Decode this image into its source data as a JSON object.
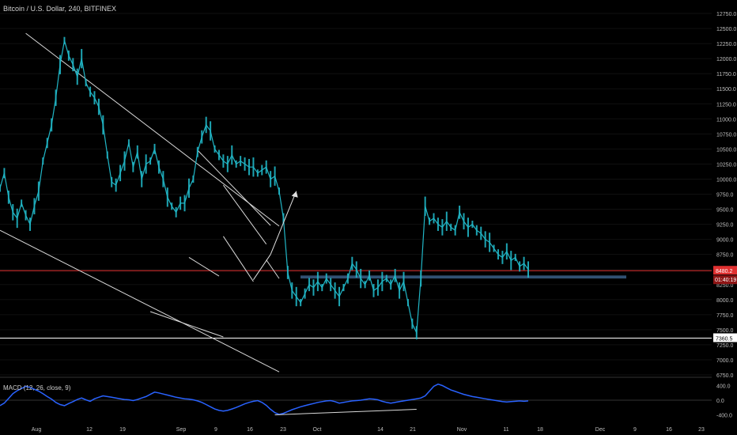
{
  "title": "Bitcoin / U.S. Dollar, 240, BITFINEX",
  "chart_data": [
    {
      "type": "line",
      "title": "Bitcoin / U.S. Dollar, 240, BITFINEX",
      "xlabel": "",
      "ylabel": "",
      "x_ticks": [
        "Aug",
        "12",
        "19",
        "Sep",
        "9",
        "16",
        "23",
        "Oct",
        "14",
        "21",
        "Nov",
        "11",
        "18",
        "Dec",
        "9",
        "16",
        "23"
      ],
      "y_ticks": [
        12750,
        12500,
        12250,
        12000,
        11750,
        11500,
        11250,
        11000,
        10750,
        10500,
        10250,
        10000,
        9750,
        9500,
        9250,
        9000,
        8750,
        8500,
        8250,
        8000,
        7750,
        7500,
        7250,
        7000,
        6750
      ],
      "y_tick_labels": [
        "12750.0",
        "12500.0",
        "12250.0",
        "12000.0",
        "11750.0",
        "11500.0",
        "11250.0",
        "11000.0",
        "10750.0",
        "10500.0",
        "10250.0",
        "10000.0",
        "9750.0",
        "9500.0",
        "9250.0",
        "9000.0",
        "8750.0",
        "8500.0",
        "8250.0",
        "8000.0",
        "7750.0",
        "7500.0",
        "7250.0",
        "7000.0",
        "6750.0"
      ],
      "ylim": [
        6650,
        12850
      ],
      "series": [
        {
          "values": [
            9850,
            10100,
            9700,
            9450,
            9350,
            9600,
            9400,
            9250,
            9550,
            9800,
            10300,
            10600,
            10900,
            11350,
            11900,
            12300,
            12050,
            11900,
            11700,
            12000,
            11600,
            11450,
            11350,
            11200,
            10900,
            10400,
            9950,
            9900,
            10100,
            10300,
            10600,
            10200,
            10450,
            10000,
            10250,
            10300,
            10500,
            10200,
            10000,
            9700,
            9550,
            9450,
            9600,
            9600,
            9850,
            10000,
            10450,
            10700,
            10900,
            10800,
            10500,
            10400,
            10300,
            10250,
            10400,
            10250,
            10300,
            10250,
            10200,
            10200,
            10100,
            10150,
            10200,
            10000,
            10050,
            9800,
            9350,
            8450,
            8150,
            8050,
            7950,
            8100,
            8250,
            8200,
            8300,
            8200,
            8350,
            8250,
            8150,
            8050,
            8200,
            8350,
            8600,
            8500,
            8350,
            8250,
            8400,
            8150,
            8200,
            8300,
            8350,
            8250,
            8400,
            8150,
            8300,
            7950,
            7600,
            7450,
            8350,
            9550,
            9300,
            9350,
            9250,
            9200,
            9300,
            9200,
            9150,
            9450,
            9300,
            9200,
            9250,
            9150,
            9100,
            9000,
            8950,
            8850,
            8750,
            8700,
            8800,
            8650,
            8700,
            8550,
            8600,
            8500
          ]
        }
      ],
      "hlines": [
        {
          "value": 8480.2,
          "label": "8480.2",
          "color": "#e03030"
        },
        {
          "value": 7360.5,
          "label": "7360.5",
          "color": "#ffffff"
        }
      ],
      "countdown": "01:40:19",
      "support_zone": [
        8350,
        8400
      ],
      "trendlines": [
        {
          "from": [
            6,
            12420
          ],
          "to": [
            65,
            9220
          ]
        },
        {
          "from": [
            0,
            9150
          ],
          "to": [
            65,
            6800
          ]
        },
        {
          "from": [
            46,
            10480
          ],
          "to": [
            63,
            9230
          ]
        },
        {
          "from": [
            52,
            9900
          ],
          "to": [
            62,
            8920
          ]
        },
        {
          "from": [
            52,
            9050
          ],
          "to": [
            59,
            8300
          ]
        },
        {
          "from": [
            35,
            7800
          ],
          "to": [
            52,
            7380
          ]
        },
        {
          "from": [
            44,
            8700
          ],
          "to": [
            51,
            8390
          ]
        },
        {
          "from": [
            62,
            8660
          ],
          "to": [
            65,
            8350
          ]
        }
      ],
      "arrow": {
        "from": [
          59,
          8330
        ],
        "via": [
          63,
          8750
        ],
        "to": [
          69,
          9800
        ]
      },
      "colors": {
        "line": "#21b6c6",
        "background": "#000000",
        "grid": "#1a1a1a",
        "zone": "#3a5f86"
      }
    },
    {
      "type": "line",
      "title": "MACD (12, 26, close, 9)",
      "y_ticks": [
        400,
        0,
        -400
      ],
      "y_tick_labels": [
        "400.0",
        "0.0",
        "-400.0"
      ],
      "ylim": [
        -520,
        520
      ],
      "series": [
        {
          "values": [
            -150,
            -80,
            50,
            180,
            260,
            320,
            380,
            350,
            300,
            250,
            180,
            100,
            30,
            -60,
            -120,
            -150,
            -90,
            -40,
            20,
            60,
            10,
            -30,
            40,
            80,
            120,
            100,
            80,
            60,
            40,
            20,
            10,
            -10,
            20,
            60,
            100,
            160,
            220,
            200,
            170,
            140,
            110,
            80,
            60,
            40,
            30,
            10,
            -20,
            -60,
            -120,
            -180,
            -240,
            -280,
            -300,
            -280,
            -240,
            -200,
            -150,
            -100,
            -60,
            -30,
            -10,
            -60,
            -140,
            -250,
            -340,
            -390,
            -360,
            -310,
            -260,
            -220,
            -180,
            -150,
            -120,
            -90,
            -60,
            -40,
            -20,
            -10,
            -40,
            -80,
            -60,
            -40,
            -20,
            -10,
            0,
            20,
            40,
            30,
            10,
            -30,
            -60,
            -80,
            -60,
            -40,
            -20,
            0,
            20,
            40,
            60,
            120,
            250,
            380,
            440,
            400,
            340,
            280,
            240,
            200,
            160,
            130,
            100,
            80,
            60,
            40,
            20,
            0,
            -20,
            -40,
            -50,
            -40,
            -30,
            -20,
            -30,
            -20
          ]
        }
      ],
      "divergence_line": {
        "from": [
          64,
          -400
        ],
        "to": [
          97,
          -250
        ]
      },
      "colors": {
        "line": "#2962ff",
        "baseline": "#444444"
      }
    }
  ]
}
